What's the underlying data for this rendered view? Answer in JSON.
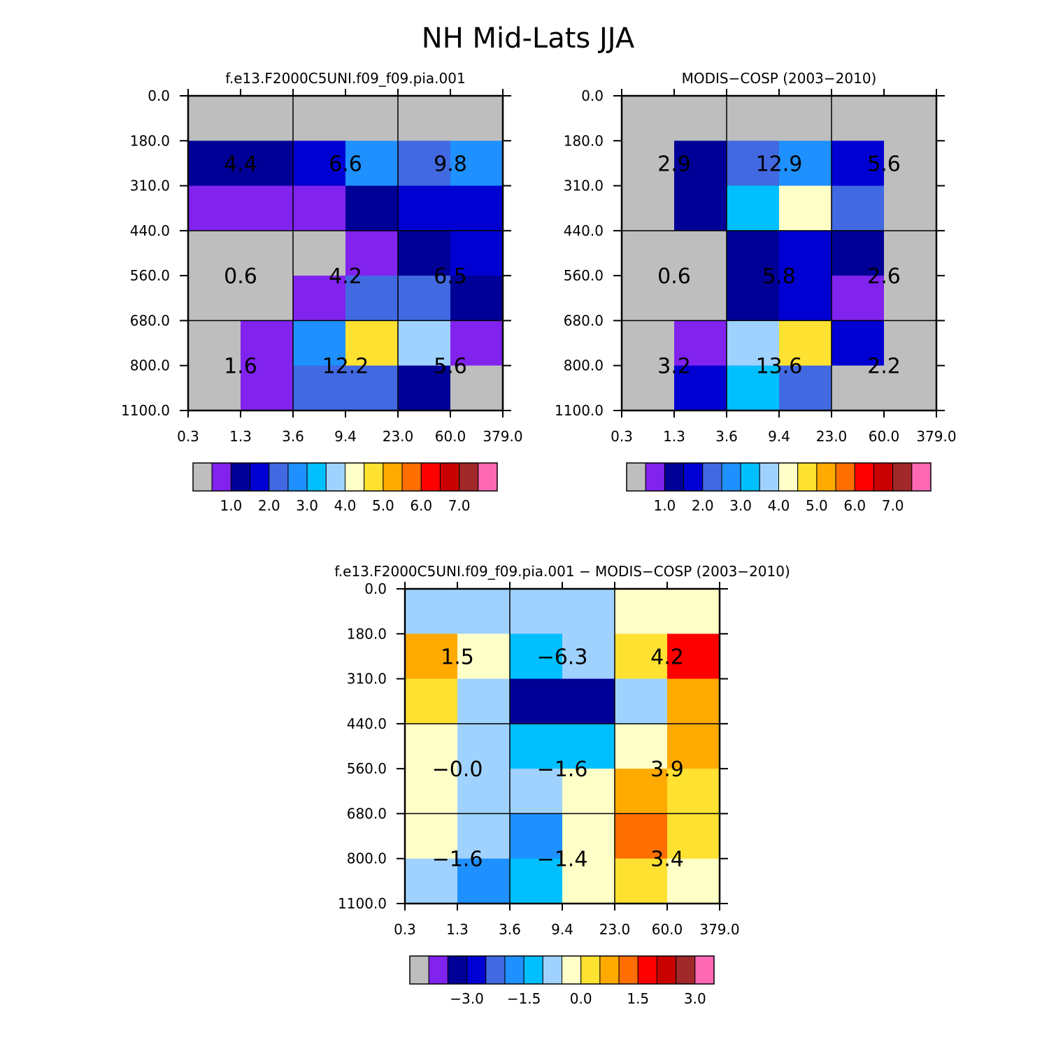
{
  "page_title": "NH Mid-Lats JJA",
  "chart_data": [
    {
      "type": "heatmap",
      "id": "model",
      "title": "f.e13.F2000C5UNI.f09_f09.pia.001",
      "xticks": [
        "0.3",
        "1.3",
        "3.6",
        "9.4",
        "23.0",
        "60.0",
        "379.0"
      ],
      "yticks": [
        "0.0",
        "180.0",
        "310.0",
        "440.0",
        "560.0",
        "680.0",
        "800.0",
        "1100.0"
      ],
      "rows": 7,
      "cols": 6,
      "cells": [
        [
          "missing",
          "missing",
          "missing",
          "missing",
          "missing",
          "missing"
        ],
        [
          "navy",
          "navy",
          "medblue",
          "dodger",
          "royal",
          "dodger"
        ],
        [
          "violet",
          "violet",
          "violet",
          "navy",
          "medblue",
          "medblue"
        ],
        [
          "missing",
          "missing",
          "missing",
          "violet",
          "navy",
          "medblue"
        ],
        [
          "missing",
          "missing",
          "violet",
          "royal",
          "royal",
          "navy"
        ],
        [
          "missing",
          "violet",
          "dodger",
          "gold",
          "lightblue",
          "violet"
        ],
        [
          "missing",
          "violet",
          "royal",
          "royal",
          "navy",
          "missing"
        ]
      ],
      "boxes": [
        {
          "label": "4.4",
          "col": 0,
          "row": 0
        },
        {
          "label": "6.6",
          "col": 1,
          "row": 0
        },
        {
          "label": "9.8",
          "col": 2,
          "row": 0
        },
        {
          "label": "0.6",
          "col": 0,
          "row": 1
        },
        {
          "label": "4.2",
          "col": 1,
          "row": 1
        },
        {
          "label": "6.5",
          "col": 2,
          "row": 1
        },
        {
          "label": "1.6",
          "col": 0,
          "row": 2
        },
        {
          "label": "12.2",
          "col": 1,
          "row": 2
        },
        {
          "label": "5.6",
          "col": 2,
          "row": 2
        }
      ],
      "colorbar_labels": [
        "1.0",
        "2.0",
        "3.0",
        "4.0",
        "5.0",
        "6.0",
        "7.0"
      ]
    },
    {
      "type": "heatmap",
      "id": "obs",
      "title": "MODIS-COSP (2003-2010)",
      "xticks": [
        "0.3",
        "1.3",
        "3.6",
        "9.4",
        "23.0",
        "60.0",
        "379.0"
      ],
      "yticks": [
        "0.0",
        "180.0",
        "310.0",
        "440.0",
        "560.0",
        "680.0",
        "800.0",
        "1100.0"
      ],
      "rows": 7,
      "cols": 6,
      "cells": [
        [
          "missing",
          "missing",
          "missing",
          "missing",
          "missing",
          "missing"
        ],
        [
          "missing",
          "navy",
          "royal",
          "dodger",
          "medblue",
          "missing"
        ],
        [
          "missing",
          "navy",
          "deepsky",
          "cream",
          "royal",
          "missing"
        ],
        [
          "missing",
          "missing",
          "navy",
          "medblue",
          "navy",
          "missing"
        ],
        [
          "missing",
          "missing",
          "navy",
          "medblue",
          "violet",
          "missing"
        ],
        [
          "missing",
          "violet",
          "lightblue",
          "gold",
          "medblue",
          "missing"
        ],
        [
          "missing",
          "medblue",
          "deepsky",
          "royal",
          "missing",
          "missing"
        ]
      ],
      "boxes": [
        {
          "label": "2.9",
          "col": 0,
          "row": 0
        },
        {
          "label": "12.9",
          "col": 1,
          "row": 0
        },
        {
          "label": "5.6",
          "col": 2,
          "row": 0
        },
        {
          "label": "0.6",
          "col": 0,
          "row": 1
        },
        {
          "label": "5.8",
          "col": 1,
          "row": 1
        },
        {
          "label": "2.6",
          "col": 2,
          "row": 1
        },
        {
          "label": "3.2",
          "col": 0,
          "row": 2
        },
        {
          "label": "13.6",
          "col": 1,
          "row": 2
        },
        {
          "label": "2.2",
          "col": 2,
          "row": 2
        }
      ],
      "colorbar_labels": [
        "1.0",
        "2.0",
        "3.0",
        "4.0",
        "5.0",
        "6.0",
        "7.0"
      ]
    },
    {
      "type": "heatmap",
      "id": "diff",
      "title": "f.e13.F2000C5UNI.f09_f09.pia.001 - MODIS-COSP (2003-2010)",
      "xticks": [
        "0.3",
        "1.3",
        "3.6",
        "9.4",
        "23.0",
        "60.0",
        "379.0"
      ],
      "yticks": [
        "0.0",
        "180.0",
        "310.0",
        "440.0",
        "560.0",
        "680.0",
        "800.0",
        "1100.0"
      ],
      "rows": 7,
      "cols": 6,
      "cells": [
        [
          "lightblue",
          "lightblue",
          "lightblue",
          "lightblue",
          "cream",
          "cream"
        ],
        [
          "orange",
          "cream",
          "deepsky",
          "lightblue",
          "gold",
          "red"
        ],
        [
          "gold",
          "lightblue",
          "navy",
          "navy",
          "lightblue",
          "orange"
        ],
        [
          "cream",
          "lightblue",
          "deepsky",
          "deepsky",
          "cream",
          "orange"
        ],
        [
          "cream",
          "lightblue",
          "lightblue",
          "cream",
          "orange",
          "gold"
        ],
        [
          "cream",
          "lightblue",
          "dodger",
          "cream",
          "darkorange",
          "gold"
        ],
        [
          "lightblue",
          "dodger",
          "deepsky",
          "cream",
          "gold",
          "cream"
        ]
      ],
      "boxes": [
        {
          "label": "1.5",
          "col": 0,
          "row": 0
        },
        {
          "label": "-6.3",
          "col": 1,
          "row": 0
        },
        {
          "label": "4.2",
          "col": 2,
          "row": 0
        },
        {
          "label": "-0.0",
          "col": 0,
          "row": 1
        },
        {
          "label": "-1.6",
          "col": 1,
          "row": 1
        },
        {
          "label": "3.9",
          "col": 2,
          "row": 1
        },
        {
          "label": "-1.6",
          "col": 0,
          "row": 2
        },
        {
          "label": "-1.4",
          "col": 1,
          "row": 2
        },
        {
          "label": "3.4",
          "col": 2,
          "row": 2
        }
      ],
      "colorbar_labels": [
        "-3.0",
        "-1.5",
        "0.0",
        "1.5",
        "3.0"
      ]
    }
  ],
  "colors": {
    "missing": "#bebebe",
    "violet": "#8122ef",
    "navy": "#000096",
    "medblue": "#0000d2",
    "royal": "#4169e1",
    "dodger": "#1e90ff",
    "deepsky": "#00bfff",
    "lightblue": "#a0d2ff",
    "cream": "#ffffc8",
    "gold": "#ffe132",
    "orange": "#ffaa00",
    "darkorange": "#ff6e00",
    "red": "#ff0000",
    "darkred": "#c80000",
    "brown": "#a02828",
    "pink": "#ff69b4"
  },
  "colorbar_order": [
    "missing",
    "violet",
    "navy",
    "medblue",
    "royal",
    "dodger",
    "deepsky",
    "lightblue",
    "cream",
    "gold",
    "orange",
    "darkorange",
    "red",
    "darkred",
    "brown",
    "pink"
  ]
}
